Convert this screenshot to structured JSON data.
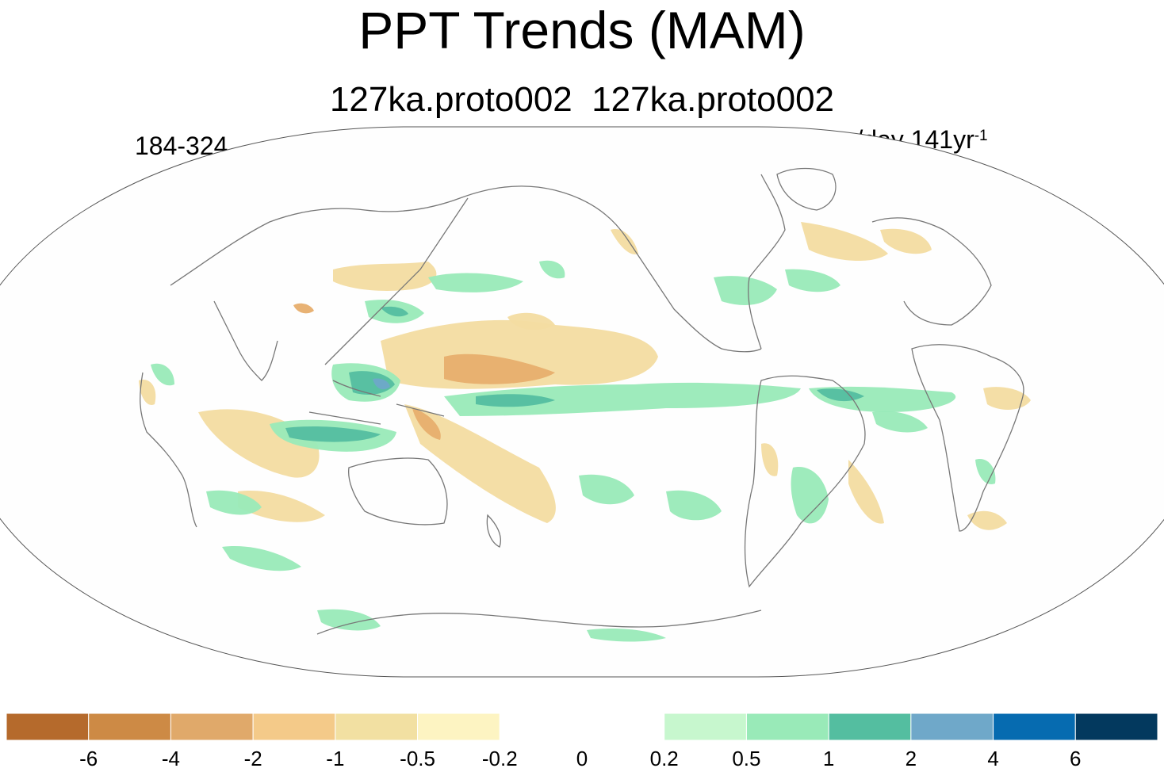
{
  "title": "PPT Trends (MAM)",
  "subtitle": "127ka.proto002  127ka.proto002",
  "left_label": "184-324",
  "units": {
    "base": "mm/day 141yr",
    "exponent": "-1"
  },
  "colorbar": {
    "colors": [
      "#b56a2c",
      "#cd8a45",
      "#e0a96a",
      "#f4ca89",
      "#f2e0a2",
      "#fdf4c2",
      "#ffffff",
      "#ffffff",
      "#c7f7ce",
      "#99eab8",
      "#54bea0",
      "#6fa8c9",
      "#066bb0",
      "#03395e"
    ],
    "tick_labels": [
      "-6",
      "-4",
      "-2",
      "-1",
      "-0.5",
      "-0.2",
      "0",
      "0.2",
      "0.5",
      "1",
      "2",
      "4",
      "6"
    ]
  },
  "map_colors": {
    "ocean": "#fefefe",
    "coast": "#777777",
    "dry_light": "#fdf0bf",
    "dry": "#f3dca1",
    "dry_strong": "#e7ae6d",
    "wet_light": "#c7f7ce",
    "wet": "#99eab8",
    "wet_strong": "#54bea0",
    "wet_blue": "#6fa8c9"
  }
}
